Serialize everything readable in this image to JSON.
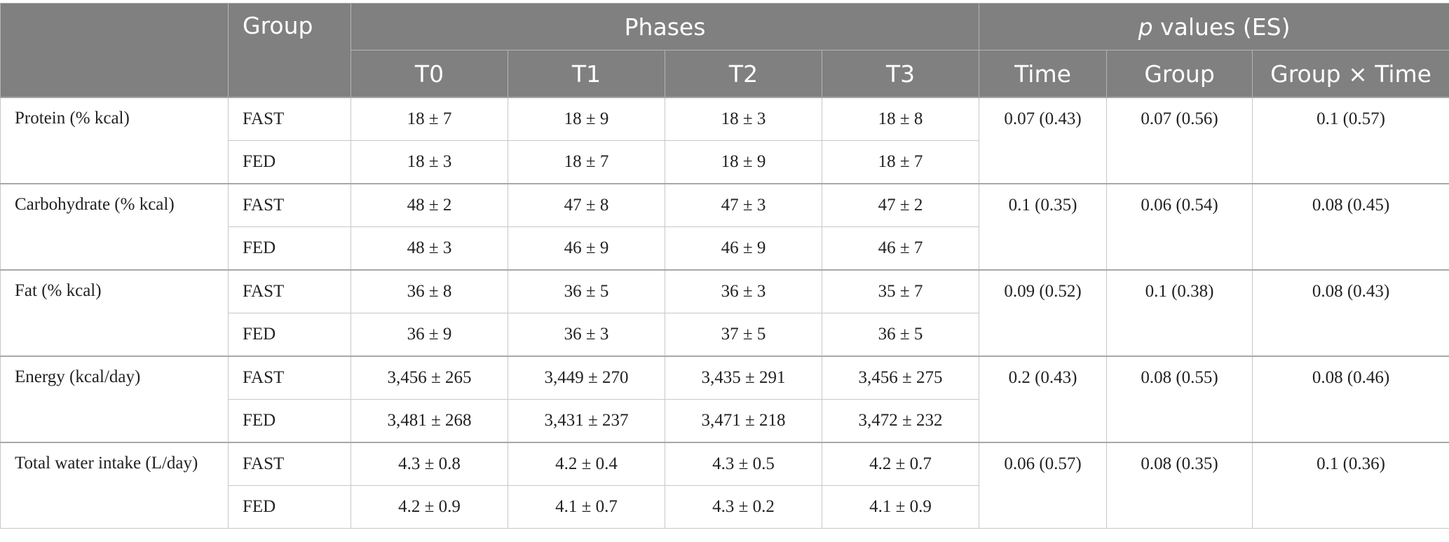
{
  "header": {
    "group": "Group",
    "phases": "Phases",
    "pvalues_italic": "p",
    "pvalues_rest": " values (ES)",
    "phase_labels": [
      "T0",
      "T1",
      "T2",
      "T3"
    ],
    "p_labels": [
      "Time",
      "Group",
      "Group × Time"
    ]
  },
  "rows": [
    {
      "variable": "Protein (% kcal)",
      "fast": {
        "group": "FAST",
        "values": [
          "18 ± 7",
          "18 ± 9",
          "18 ± 3",
          "18 ± 8"
        ]
      },
      "fed": {
        "group": "FED",
        "values": [
          "18 ± 3",
          "18 ± 7",
          "18 ± 9",
          "18 ± 7"
        ]
      },
      "p": [
        "0.07 (0.43)",
        "0.07 (0.56)",
        "0.1 (0.57)"
      ]
    },
    {
      "variable": "Carbohydrate (% kcal)",
      "fast": {
        "group": "FAST",
        "values": [
          "48 ± 2",
          "47 ± 8",
          "47 ± 3",
          "47 ± 2"
        ]
      },
      "fed": {
        "group": "FED",
        "values": [
          "48 ± 3",
          "46 ± 9",
          "46 ± 9",
          "46 ± 7"
        ]
      },
      "p": [
        "0.1 (0.35)",
        "0.06 (0.54)",
        "0.08 (0.45)"
      ]
    },
    {
      "variable": "Fat (% kcal)",
      "fast": {
        "group": "FAST",
        "values": [
          "36 ± 8",
          "36 ± 5",
          "36 ± 3",
          "35 ± 7"
        ]
      },
      "fed": {
        "group": "FED",
        "values": [
          "36 ± 9",
          "36 ± 3",
          "37 ± 5",
          "36 ± 5"
        ]
      },
      "p": [
        "0.09 (0.52)",
        "0.1 (0.38)",
        "0.08 (0.43)"
      ]
    },
    {
      "variable": "Energy (kcal/day)",
      "fast": {
        "group": "FAST",
        "values": [
          "3,456 ± 265",
          "3,449 ± 270",
          "3,435 ± 291",
          "3,456 ± 275"
        ]
      },
      "fed": {
        "group": "FED",
        "values": [
          "3,481 ± 268",
          "3,431 ± 237",
          "3,471 ± 218",
          "3,472 ± 232"
        ]
      },
      "p": [
        "0.2 (0.43)",
        "0.08 (0.55)",
        "0.08 (0.46)"
      ]
    },
    {
      "variable": "Total water intake (L/day)",
      "fast": {
        "group": "FAST",
        "values": [
          "4.3 ± 0.8",
          "4.2 ± 0.4",
          "4.3 ± 0.5",
          "4.2 ± 0.7"
        ]
      },
      "fed": {
        "group": "FED",
        "values": [
          "4.2 ± 0.9",
          "4.1 ± 0.7",
          "4.3 ± 0.2",
          "4.1 ± 0.9"
        ]
      },
      "p": [
        "0.06 (0.57)",
        "0.08 (0.35)",
        "0.1 (0.36)"
      ]
    }
  ],
  "colors": {
    "header_bg": "#808080",
    "header_text": "#ffffff",
    "grid": "#c8c8c8"
  }
}
